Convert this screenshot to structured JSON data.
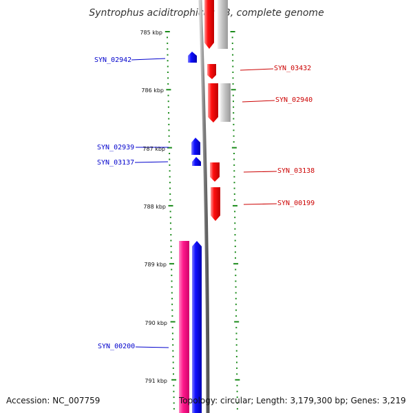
{
  "title": "Syntrophus aciditrophicus SB, complete genome",
  "accession": "Accession: NC_007759",
  "topology": "Topology: circular; Length: 3,179,300 bp; Genes: 3,219",
  "colors": {
    "tick": "#1a8a1a",
    "backbone": "#808080",
    "forward_gene": "#ee0000",
    "reverse_gene": "#0000ee",
    "forward_shadow": "#c0c0c0",
    "reverse_shadow": "#ff1a8c",
    "label_forward": "#cc0000",
    "label_reverse": "#0000cc"
  },
  "kbp_ticks": [
    "785 kbp",
    "786 kbp",
    "787 kbp",
    "788 kbp",
    "789 kbp",
    "790 kbp",
    "791 kbp"
  ],
  "gene_labels": [
    {
      "text": "SYN_02942",
      "strand": "reverse"
    },
    {
      "text": "SYN_03432",
      "strand": "forward"
    },
    {
      "text": "SYN_02940",
      "strand": "forward"
    },
    {
      "text": "SYN_02939",
      "strand": "reverse"
    },
    {
      "text": "SYN_03137",
      "strand": "reverse"
    },
    {
      "text": "SYN_03138",
      "strand": "forward"
    },
    {
      "text": "SYN_00199",
      "strand": "forward"
    },
    {
      "text": "SYN_00200",
      "strand": "reverse"
    }
  ]
}
